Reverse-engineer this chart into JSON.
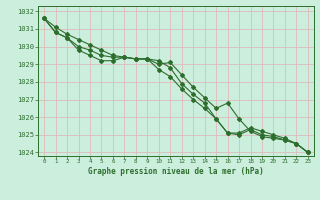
{
  "title": "Graphe pression niveau de la mer (hPa)",
  "background_color": "#cceedd",
  "grid_color": "#ddbbbb",
  "line_color": "#2d6e2d",
  "text_color": "#2d6e2d",
  "spine_color": "#2d6e2d",
  "x_values": [
    0,
    1,
    2,
    3,
    4,
    5,
    6,
    7,
    8,
    9,
    10,
    11,
    12,
    13,
    14,
    15,
    16,
    17,
    18,
    19,
    20,
    21,
    22,
    23
  ],
  "x_labels": [
    "0",
    "1",
    "2",
    "3",
    "4",
    "5",
    "6",
    "7",
    "8",
    "9",
    "10",
    "11",
    "12",
    "13",
    "14",
    "15",
    "16",
    "17",
    "18",
    "19",
    "20",
    "21",
    "22",
    "23"
  ],
  "series1": [
    1031.6,
    1031.1,
    1030.7,
    1030.4,
    1030.1,
    1029.8,
    1029.5,
    1029.4,
    1029.3,
    1029.3,
    1029.0,
    1029.1,
    1028.4,
    1027.7,
    1027.1,
    1026.5,
    1026.8,
    1025.9,
    1025.2,
    1024.9,
    1024.8,
    1024.7,
    1024.5,
    1024.0
  ],
  "series2": [
    1031.6,
    1030.8,
    1030.5,
    1030.0,
    1029.8,
    1029.5,
    1029.4,
    1029.4,
    1029.3,
    1029.3,
    1028.7,
    1028.3,
    1027.6,
    1027.0,
    1026.5,
    1025.9,
    1025.1,
    1025.0,
    1025.3,
    1025.0,
    1024.9,
    1024.7,
    1024.5,
    1024.0
  ],
  "series3": [
    1031.6,
    1030.8,
    1030.5,
    1029.8,
    1029.5,
    1029.2,
    1029.2,
    1029.4,
    1029.3,
    1029.3,
    1029.2,
    1028.8,
    1027.9,
    1027.3,
    1026.8,
    1025.9,
    1025.1,
    1025.1,
    1025.4,
    1025.2,
    1025.0,
    1024.8,
    1024.5,
    1024.0
  ],
  "ylim_min": 1023.8,
  "ylim_max": 1032.3,
  "yticks": [
    1024,
    1025,
    1026,
    1027,
    1028,
    1029,
    1030,
    1031,
    1032
  ]
}
